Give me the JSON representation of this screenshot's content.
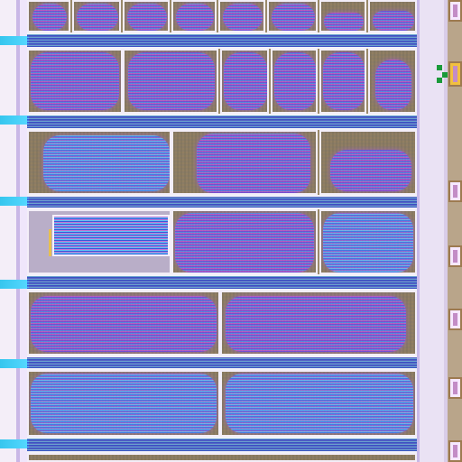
{
  "view": {
    "type": "chip-layout",
    "colors": {
      "channel": "#4a72dc",
      "blob_magenta": "#b060d8",
      "blob_blue": "#4d86e8",
      "border": "#f3eef8",
      "substrate": "#8c7c66",
      "rail_cyan": "#36c6ee"
    }
  }
}
